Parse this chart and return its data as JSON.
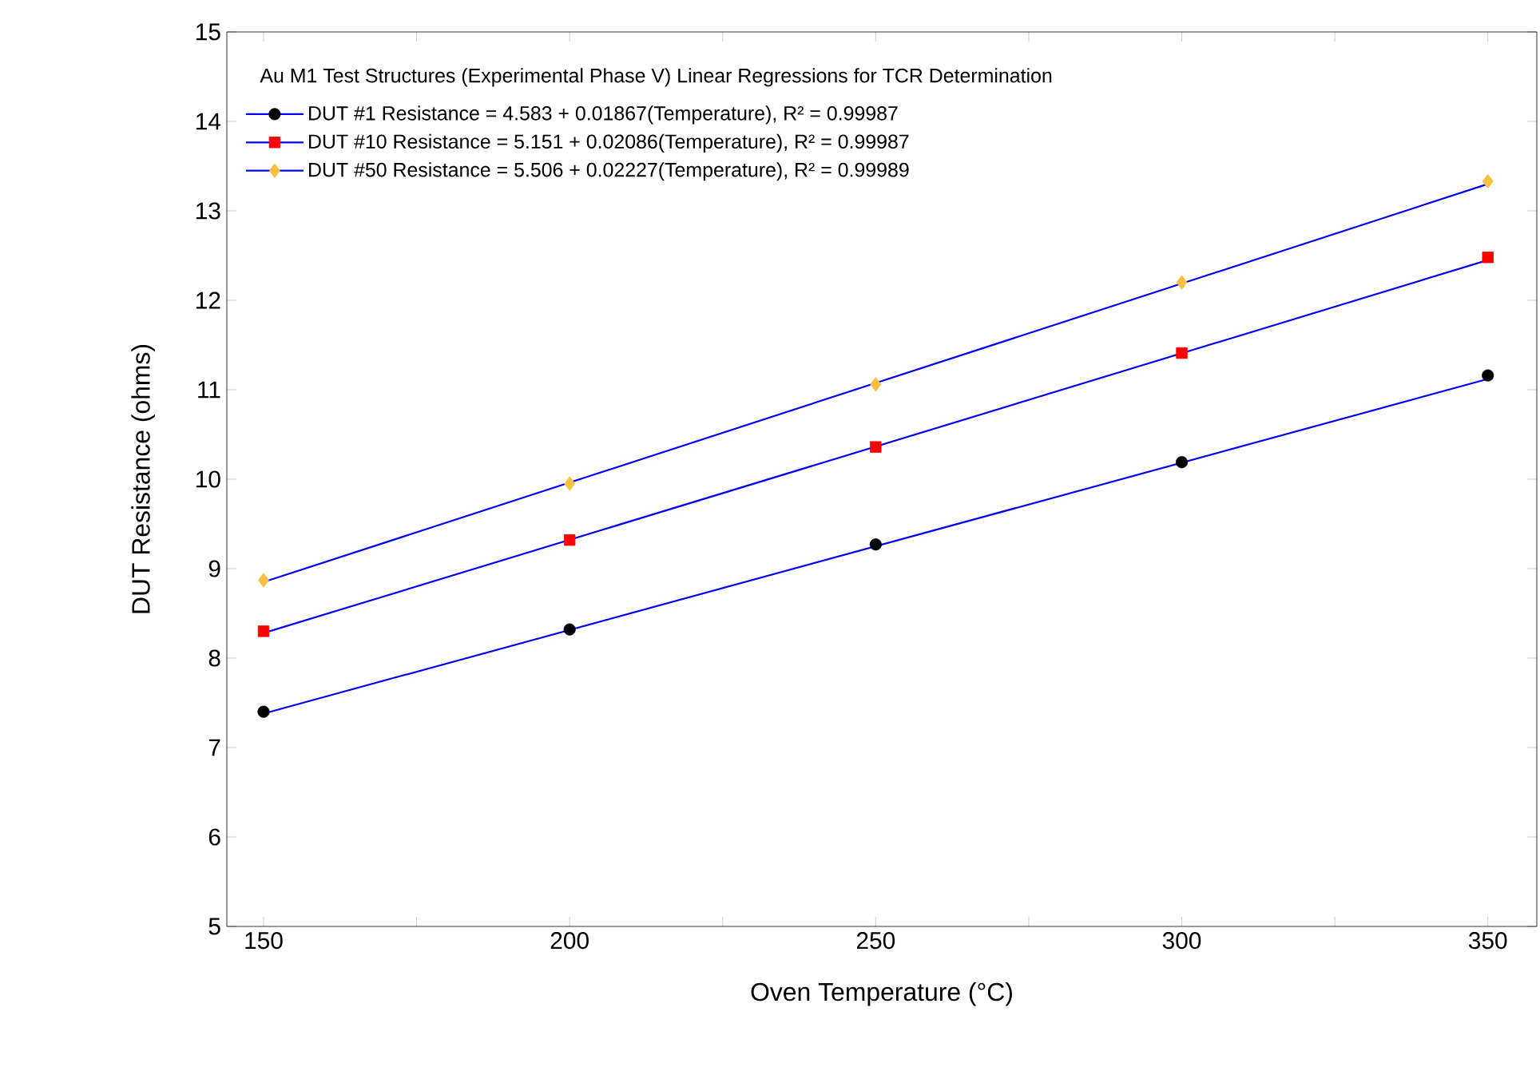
{
  "chart_data": {
    "type": "scatter",
    "xlabel": "Oven Temperature (°C)",
    "ylabel": "DUT Resistance (ohms)",
    "legend_title": "Au M1 Test Structures (Experimental Phase V)    Linear Regressions for TCR Determination",
    "xlim": [
      144,
      358
    ],
    "ylim": [
      5,
      15
    ],
    "xticks": [
      150,
      {
        "value": 175,
        "label": null
      },
      200,
      {
        "value": 225,
        "label": null
      },
      250,
      {
        "value": 275,
        "label": null
      },
      300,
      {
        "value": 325,
        "label": null
      },
      350
    ],
    "yticks": [
      5,
      6,
      7,
      8,
      9,
      10,
      11,
      12,
      13,
      14,
      15
    ],
    "grid": false,
    "legend": "top left",
    "series": [
      {
        "name": "DUT #1   Resistance =  4.583 + 0.01867(Temperature),  R² = 0.99987",
        "color": "#000000",
        "marker": "circle",
        "x": [
          150,
          200,
          250,
          300,
          350
        ],
        "values": [
          7.4,
          8.32,
          9.27,
          10.19,
          11.16
        ]
      },
      {
        "name": "DUT #10 Resistance =  5.151 + 0.02086(Temperature),  R² = 0.99987",
        "color": "#ff0000",
        "marker": "square",
        "x": [
          150,
          200,
          250,
          300,
          350
        ],
        "values": [
          8.3,
          9.32,
          10.36,
          11.41,
          12.48
        ]
      },
      {
        "name": "DUT #50 Resistance =  5.506 + 0.02227(Temperature),  R² = 0.99989",
        "color": "#f8c040",
        "marker": "diamond",
        "x": [
          150,
          200,
          250,
          300,
          350
        ],
        "values": [
          8.87,
          9.95,
          11.06,
          12.2,
          13.33
        ]
      },
      {
        "type": "line",
        "color": "#0000ff",
        "x": [
          150,
          350
        ],
        "values": [
          7.38,
          11.12
        ]
      },
      {
        "type": "line",
        "color": "#0000ff",
        "x": [
          150,
          350
        ],
        "values": [
          8.28,
          12.45
        ]
      },
      {
        "type": "line",
        "color": "#0000ff",
        "x": [
          150,
          350
        ],
        "values": [
          8.85,
          13.3
        ]
      }
    ]
  }
}
